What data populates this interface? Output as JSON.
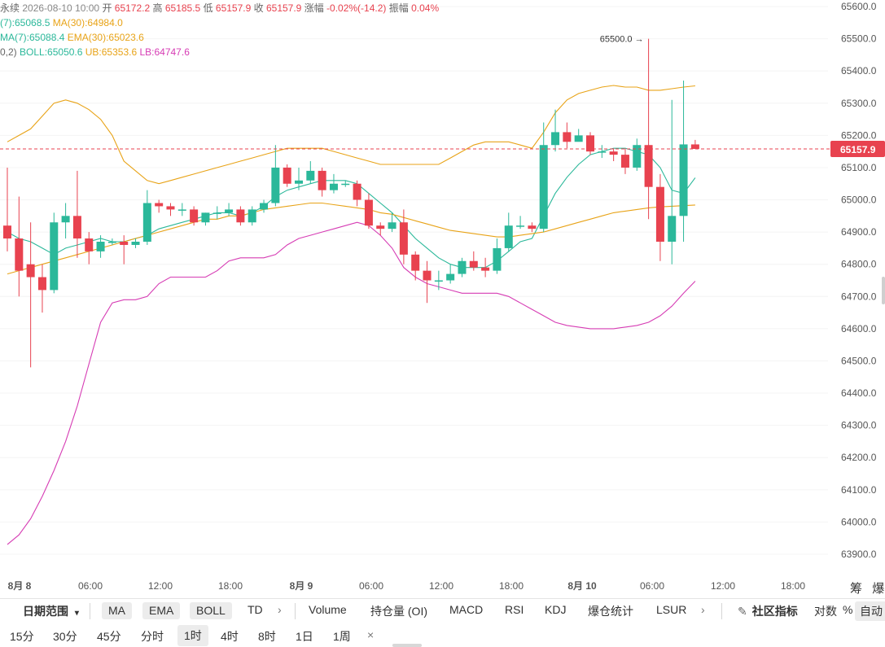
{
  "header": {
    "line1": [
      {
        "text": "永续",
        "color": "#666666"
      },
      {
        "text": "2026-08-10 10:00",
        "color": "#888888"
      },
      {
        "text": "开",
        "color": "#666666"
      },
      {
        "text": "65172.2",
        "color": "#e8424f"
      },
      {
        "text": "高",
        "color": "#666666"
      },
      {
        "text": "65185.5",
        "color": "#e8424f"
      },
      {
        "text": "低",
        "color": "#666666"
      },
      {
        "text": "65157.9",
        "color": "#e8424f"
      },
      {
        "text": "收",
        "color": "#666666"
      },
      {
        "text": "65157.9",
        "color": "#e8424f"
      },
      {
        "text": "涨幅",
        "color": "#666666"
      },
      {
        "text": "-0.02%(-14.2)",
        "color": "#e8424f"
      },
      {
        "text": "振幅",
        "color": "#666666"
      },
      {
        "text": "0.04%",
        "color": "#e8424f"
      }
    ],
    "line2": [
      {
        "text": "(7):65068.5",
        "color": "#2bb89a"
      },
      {
        "text": "MA(30):64984.0",
        "color": "#e8a317"
      }
    ],
    "line3": [
      {
        "text": "MA(7):65088.4",
        "color": "#2bb89a"
      },
      {
        "text": "EMA(30):65023.6",
        "color": "#e8a317"
      }
    ],
    "line4": [
      {
        "text": "0,2)",
        "color": "#666666"
      },
      {
        "text": "BOLL:65050.6",
        "color": "#2bb89a"
      },
      {
        "text": "UB:65353.6",
        "color": "#e8a317"
      },
      {
        "text": "LB:64747.6",
        "color": "#d63cb4"
      }
    ]
  },
  "price_axis": {
    "ticks": [
      "65600.0",
      "65500.0",
      "65400.0",
      "65300.0",
      "65200.0",
      "65100.0",
      "65000.0",
      "64900.0",
      "64800.0",
      "64700.0",
      "64600.0",
      "64500.0",
      "64400.0",
      "64300.0",
      "64200.0",
      "64100.0",
      "64000.0",
      "63900.0"
    ],
    "current_price": "65157.9"
  },
  "time_axis": {
    "labels": [
      "8月 8",
      "06:00",
      "12:00",
      "18:00",
      "8月 9",
      "06:00",
      "12:00",
      "18:00",
      "8月 10",
      "06:00",
      "12:00",
      "18:00"
    ]
  },
  "annotations": {
    "max_label": "65500.0 →"
  },
  "toolbar": {
    "date_range": "日期范围",
    "chips": [
      "MA",
      "EMA",
      "BOLL"
    ],
    "td": "TD",
    "arrow1": "›",
    "indicators": [
      "Volume",
      "持仓量 (OI)",
      "MACD",
      "RSI",
      "KDJ",
      "爆仓统计",
      "LSUR"
    ],
    "arrow2": "›",
    "community": "社区指标",
    "log": "对数",
    "percent": "%",
    "auto": "自动"
  },
  "intervals": {
    "items": [
      "15分",
      "30分",
      "45分",
      "分时",
      "1时",
      "4时",
      "8时",
      "1日",
      "1周"
    ],
    "active": "1时",
    "close": "×"
  },
  "corner": {
    "label1": "筹",
    "label2": "爆"
  },
  "colors": {
    "up": "#2bb89a",
    "down": "#e8424f",
    "ma_fast": "#2bb89a",
    "ma_slow": "#e8a317",
    "boll_lower": "#d63cb4",
    "price_tag": "#e8424f"
  },
  "chart_data": {
    "type": "candlestick",
    "x_labels": [
      "8月 8",
      "06:00",
      "12:00",
      "18:00",
      "8月 9",
      "06:00",
      "12:00",
      "18:00",
      "8月 10",
      "06:00",
      "12:00",
      "18:00"
    ],
    "ylim": [
      63850,
      65620
    ],
    "y_ticks": [
      65600,
      65500,
      65400,
      65300,
      65200,
      65100,
      65000,
      64900,
      64800,
      64700,
      64600,
      64500,
      64400,
      64300,
      64200,
      64100,
      64000,
      63900
    ],
    "current_price": 65157.9,
    "candles": [
      [
        64920,
        64880,
        65100,
        64840
      ],
      [
        64880,
        64780,
        65010,
        64700
      ],
      [
        64800,
        64760,
        64930,
        64480
      ],
      [
        64760,
        64720,
        64800,
        64650
      ],
      [
        64720,
        64930,
        64960,
        64710
      ],
      [
        64930,
        64950,
        64990,
        64880
      ],
      [
        64950,
        64880,
        65090,
        64820
      ],
      [
        64880,
        64840,
        64900,
        64800
      ],
      [
        64840,
        64870,
        64890,
        64820
      ],
      [
        64870,
        64870,
        64880,
        64860
      ],
      [
        64870,
        64860,
        64890,
        64800
      ],
      [
        64860,
        64870,
        64880,
        64850
      ],
      [
        64870,
        64990,
        65030,
        64860
      ],
      [
        64990,
        64980,
        65000,
        64960
      ],
      [
        64980,
        64970,
        64990,
        64950
      ],
      [
        64970,
        64970,
        64990,
        64950
      ],
      [
        64970,
        64930,
        64980,
        64920
      ],
      [
        64930,
        64960,
        64960,
        64920
      ],
      [
        64960,
        64960,
        64980,
        64940
      ],
      [
        64960,
        64970,
        64990,
        64950
      ],
      [
        64970,
        64930,
        64980,
        64920
      ],
      [
        64930,
        64970,
        64980,
        64920
      ],
      [
        64970,
        64990,
        65000,
        64960
      ],
      [
        64990,
        65100,
        65170,
        64980
      ],
      [
        65100,
        65050,
        65110,
        65040
      ],
      [
        65050,
        65060,
        65100,
        65030
      ],
      [
        65060,
        65090,
        65120,
        65050
      ],
      [
        65090,
        65030,
        65100,
        65010
      ],
      [
        65030,
        65050,
        65080,
        65020
      ],
      [
        65050,
        65050,
        65060,
        65040
      ],
      [
        65050,
        65000,
        65060,
        64980
      ],
      [
        65000,
        64920,
        65020,
        64910
      ],
      [
        64920,
        64910,
        64930,
        64890
      ],
      [
        64910,
        64930,
        64960,
        64900
      ],
      [
        64930,
        64830,
        64970,
        64800
      ],
      [
        64830,
        64780,
        64840,
        64750
      ],
      [
        64780,
        64750,
        64810,
        64680
      ],
      [
        64750,
        64750,
        64780,
        64720
      ],
      [
        64750,
        64770,
        64800,
        64740
      ],
      [
        64770,
        64810,
        64820,
        64760
      ],
      [
        64810,
        64790,
        64840,
        64780
      ],
      [
        64790,
        64780,
        64820,
        64760
      ],
      [
        64780,
        64850,
        64880,
        64770
      ],
      [
        64850,
        64920,
        64960,
        64840
      ],
      [
        64920,
        64920,
        64950,
        64910
      ],
      [
        64920,
        64910,
        64930,
        64900
      ],
      [
        64910,
        65170,
        65240,
        64900
      ],
      [
        65170,
        65210,
        65280,
        65150
      ],
      [
        65210,
        65180,
        65240,
        65160
      ],
      [
        65180,
        65200,
        65220,
        65190
      ],
      [
        65200,
        65150,
        65210,
        65140
      ],
      [
        65150,
        65150,
        65170,
        65130
      ],
      [
        65150,
        65140,
        65160,
        65120
      ],
      [
        65140,
        65100,
        65160,
        65080
      ],
      [
        65100,
        65170,
        65190,
        65090
      ],
      [
        65170,
        65040,
        65500,
        64940
      ],
      [
        65040,
        64870,
        65080,
        64810
      ],
      [
        64870,
        64950,
        65310,
        64800
      ],
      [
        64950,
        65172,
        65370,
        64870
      ],
      [
        65172,
        65158,
        65186,
        65158
      ]
    ],
    "series": [
      {
        "name": "MA(7)",
        "values": [
          64900,
          64880,
          64870,
          64850,
          64830,
          64850,
          64860,
          64870,
          64880,
          64870,
          64870,
          64880,
          64890,
          64910,
          64920,
          64930,
          64940,
          64950,
          64960,
          64960,
          64950,
          64960,
          64980,
          65010,
          65030,
          65040,
          65050,
          65060,
          65060,
          65060,
          65050,
          65020,
          64990,
          64960,
          64920,
          64880,
          64850,
          64820,
          64800,
          64790,
          64790,
          64790,
          64810,
          64840,
          64870,
          64880,
          64950,
          65020,
          65070,
          65110,
          65140,
          65150,
          65160,
          65160,
          65150,
          65140,
          65100,
          65030,
          65020,
          65068.5
        ]
      },
      {
        "name": "MA(30)",
        "values": [
          64770,
          64780,
          64790,
          64800,
          64810,
          64820,
          64830,
          64840,
          64850,
          64860,
          64870,
          64880,
          64890,
          64900,
          64910,
          64920,
          64930,
          64940,
          64940,
          64950,
          64950,
          64960,
          64970,
          64975,
          64980,
          64985,
          64990,
          64990,
          64985,
          64980,
          64975,
          64970,
          64960,
          64955,
          64945,
          64935,
          64925,
          64915,
          64905,
          64900,
          64895,
          64890,
          64885,
          64885,
          64890,
          64895,
          64900,
          64910,
          64920,
          64930,
          64940,
          64950,
          64960,
          64965,
          64970,
          64975,
          64978,
          64980,
          64982,
          64984.0
        ]
      },
      {
        "name": "BOLL UB",
        "values": [
          65180,
          65200,
          65220,
          65260,
          65300,
          65310,
          65300,
          65280,
          65250,
          65200,
          65120,
          65090,
          65060,
          65050,
          65060,
          65070,
          65080,
          65090,
          65100,
          65110,
          65120,
          65130,
          65140,
          65150,
          65160,
          65160,
          65160,
          65160,
          65150,
          65140,
          65130,
          65120,
          65110,
          65110,
          65110,
          65110,
          65110,
          65110,
          65130,
          65150,
          65170,
          65180,
          65180,
          65180,
          65170,
          65160,
          65210,
          65270,
          65310,
          65330,
          65340,
          65350,
          65355,
          65350,
          65350,
          65340,
          65340,
          65345,
          65350,
          65353.6
        ]
      },
      {
        "name": "BOLL LB",
        "values": [
          63930,
          63960,
          64010,
          64080,
          64160,
          64250,
          64360,
          64490,
          64620,
          64680,
          64690,
          64690,
          64700,
          64740,
          64760,
          64760,
          64760,
          64760,
          64780,
          64810,
          64820,
          64820,
          64820,
          64830,
          64860,
          64880,
          64890,
          64900,
          64910,
          64920,
          64930,
          64920,
          64890,
          64850,
          64790,
          64760,
          64740,
          64730,
          64720,
          64710,
          64710,
          64710,
          64710,
          64700,
          64680,
          64660,
          64640,
          64620,
          64610,
          64605,
          64600,
          64600,
          64600,
          64605,
          64610,
          64620,
          64640,
          64670,
          64710,
          64747.6
        ]
      }
    ]
  }
}
